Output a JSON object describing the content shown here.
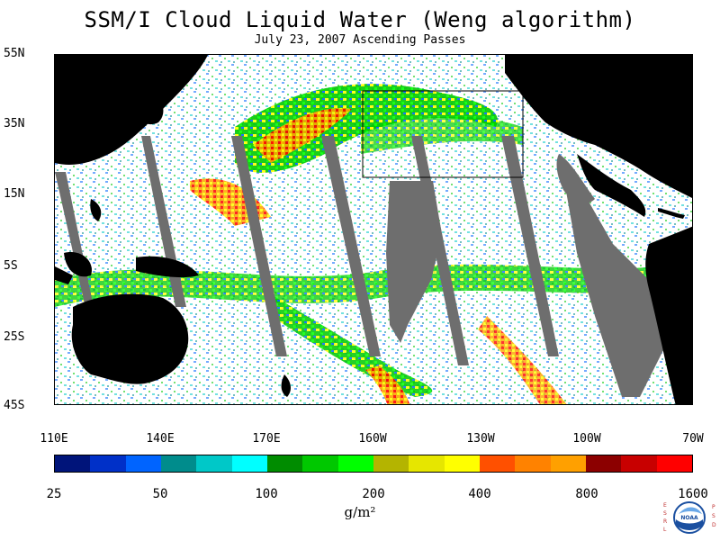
{
  "title": "SSM/I Cloud Liquid Water (Weng algorithm)",
  "subtitle": "July 23, 2007  Ascending Passes",
  "lat_labels": [
    "55N",
    "35N",
    "15N",
    "5S",
    "25S",
    "45S"
  ],
  "lon_labels": [
    "110E",
    "140E",
    "170E",
    "160W",
    "130W",
    "100W",
    "70W"
  ],
  "colorbar": {
    "colors": [
      "#00147a",
      "#0030c8",
      "#0064ff",
      "#008c8c",
      "#00c8c8",
      "#00ffff",
      "#008c00",
      "#00c800",
      "#00ff00",
      "#b4b400",
      "#e6e600",
      "#ffff00",
      "#ff5000",
      "#ff8200",
      "#ffa000",
      "#8c0000",
      "#c80000",
      "#ff0000"
    ],
    "tick_labels": [
      "25",
      "50",
      "100",
      "200",
      "400",
      "800",
      "1600"
    ],
    "units": "g/m²"
  },
  "logo": {
    "left_text": "ESRL",
    "right_text": "PSD",
    "center_text": "NOAA"
  },
  "colors": {
    "land": "#000000",
    "missing": "#6e6e6e",
    "background": "#ffffff"
  }
}
